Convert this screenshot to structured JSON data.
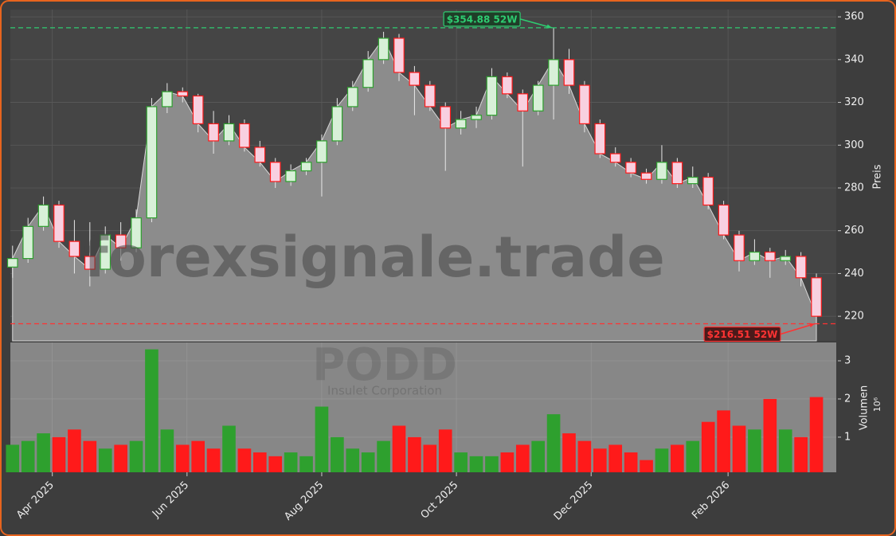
{
  "chart_data": {
    "type": "candlestick",
    "watermark": "forexsignale.trade",
    "symbol": "PODD",
    "company": "Insulet Corporation",
    "y_label": "Preis",
    "y2_label": "Volumen",
    "y2_scale_label": "10⁶",
    "up_color": "#2ea02e",
    "down_color": "#ff1a1a",
    "area_color": "#8c8c8c",
    "grid": true,
    "xlim": [
      0,
      374
    ],
    "xticks": [
      {
        "value": 19,
        "label": "Apr 2025"
      },
      {
        "value": 80,
        "label": "Jun 2025"
      },
      {
        "value": 141,
        "label": "Aug 2025"
      },
      {
        "value": 202,
        "label": "Oct 2025"
      },
      {
        "value": 263,
        "label": "Dec 2025"
      },
      {
        "value": 325,
        "label": "Feb 2026"
      }
    ],
    "ylim": [
      208.5,
      363.4
    ],
    "yticks": [
      220,
      240,
      260,
      280,
      300,
      320,
      340,
      360
    ],
    "y2lim": [
      0.08,
      3.48
    ],
    "y2ticks": [
      1,
      2,
      3
    ],
    "annotations": [
      {
        "text": "$354.88 52W",
        "value": 354.88,
        "color": "#2ecc71"
      },
      {
        "text": "$216.51 52W",
        "value": 216.51,
        "color": "#ff3333"
      }
    ],
    "x": [
      1,
      8,
      15,
      22,
      29,
      36,
      43,
      50,
      57,
      64,
      71,
      78,
      85,
      92,
      99,
      106,
      113,
      120,
      127,
      134,
      141,
      148,
      155,
      162,
      169,
      176,
      183,
      190,
      197,
      204,
      211,
      218,
      225,
      232,
      239,
      246,
      253,
      260,
      267,
      274,
      281,
      288,
      295,
      302,
      309,
      316,
      323,
      330,
      337,
      344,
      351,
      358,
      365
    ],
    "open": [
      243,
      247,
      262,
      272,
      255,
      248,
      242,
      258,
      252,
      266,
      318,
      325,
      323,
      310,
      302,
      310,
      299,
      292,
      283,
      288,
      292,
      302,
      318,
      327,
      340,
      350,
      334,
      328,
      318,
      308,
      312,
      314,
      332,
      324,
      316,
      328,
      340,
      328,
      310,
      296,
      292,
      287,
      284,
      292,
      282,
      285,
      272,
      258,
      246,
      250,
      246,
      248,
      238
    ],
    "high": [
      253,
      266,
      276,
      274,
      265,
      264,
      262,
      264,
      270,
      322,
      329,
      327,
      324,
      316,
      314,
      312,
      302,
      294,
      291,
      294,
      305,
      322,
      330,
      344,
      353,
      352,
      337,
      330,
      320,
      316,
      318,
      336,
      334,
      326,
      330,
      354.88,
      345,
      330,
      312,
      299,
      294,
      289,
      300,
      294,
      290,
      287,
      274,
      260,
      256,
      252,
      251,
      250,
      240
    ],
    "low": [
      238,
      245,
      260,
      252,
      240,
      234,
      240,
      246,
      250,
      264,
      315,
      320,
      306,
      296,
      300,
      297,
      290,
      280,
      281,
      286,
      276,
      300,
      316,
      325,
      338,
      330,
      314,
      316,
      288,
      305,
      308,
      312,
      322,
      290,
      314,
      312,
      324,
      306,
      294,
      290,
      285,
      282,
      282,
      280,
      280,
      270,
      256,
      241,
      244,
      238,
      244,
      234,
      216.51
    ],
    "close": [
      247,
      262,
      272,
      255,
      248,
      242,
      258,
      252,
      266,
      318,
      325,
      323,
      310,
      302,
      310,
      299,
      292,
      283,
      288,
      292,
      302,
      318,
      327,
      340,
      350,
      334,
      328,
      318,
      308,
      312,
      314,
      332,
      324,
      316,
      328,
      340,
      328,
      310,
      296,
      292,
      287,
      284,
      292,
      282,
      285,
      272,
      258,
      246,
      250,
      246,
      248,
      238,
      220
    ],
    "volume": [
      0.8,
      0.9,
      1.1,
      1.0,
      1.2,
      0.9,
      0.7,
      0.8,
      0.9,
      3.3,
      1.2,
      0.8,
      0.9,
      0.7,
      1.3,
      0.7,
      0.6,
      0.5,
      0.6,
      0.5,
      1.8,
      1.0,
      0.7,
      0.6,
      0.9,
      1.3,
      1.0,
      0.8,
      1.2,
      0.6,
      0.5,
      0.5,
      0.6,
      0.8,
      0.9,
      1.6,
      1.1,
      0.9,
      0.7,
      0.8,
      0.6,
      0.4,
      0.7,
      0.8,
      0.9,
      1.4,
      1.7,
      1.3,
      1.2,
      2.0,
      1.2,
      1.0,
      2.05
    ]
  }
}
